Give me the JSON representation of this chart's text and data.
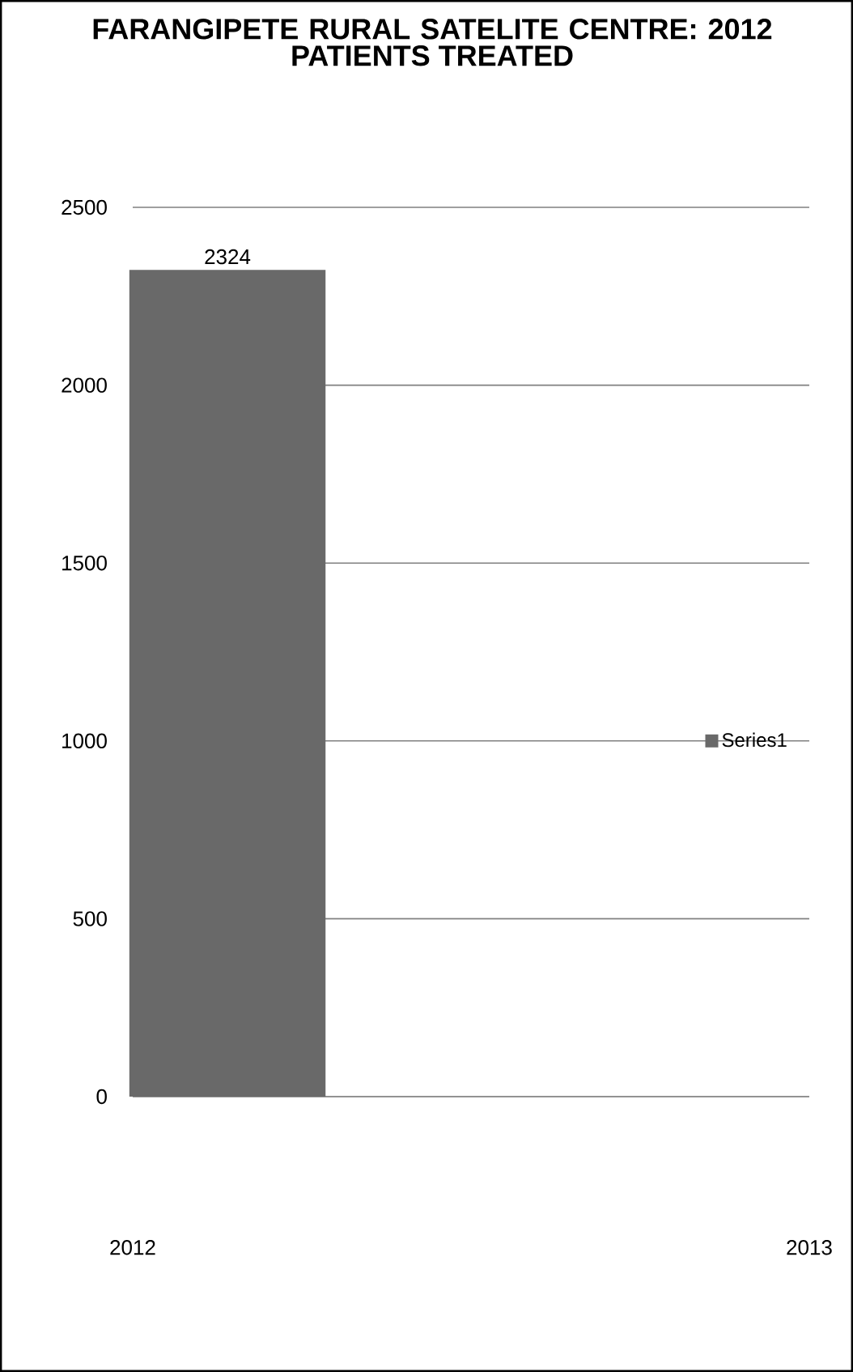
{
  "chart_data": {
    "type": "bar",
    "title": "FARANGIPETE RURAL SATELITE CENTRE: 2012",
    "subtitle": "PATIENTS TREATED",
    "x": [
      2012.14
    ],
    "series": [
      {
        "name": "Series1",
        "color": "#696969",
        "values": [
          2324
        ]
      }
    ],
    "xlim": [
      2012,
      2013
    ],
    "xticks": [
      {
        "value": 2012,
        "label": "2012"
      },
      {
        "value": 2013,
        "label": "2013"
      }
    ],
    "ylim": [
      0,
      2500
    ],
    "yticks": [
      0,
      500,
      1000,
      1500,
      2000,
      2500
    ],
    "grid": "y",
    "legend": "right",
    "data_labels": true
  }
}
